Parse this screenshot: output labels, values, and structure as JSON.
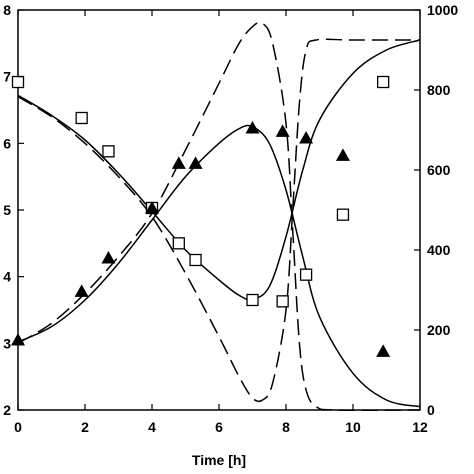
{
  "chart_data": {
    "type": "scatter",
    "title": "",
    "xlabel": "Time [h]",
    "ylabel": "",
    "y2label": "",
    "xlim": [
      0,
      12
    ],
    "ylim": [
      2,
      8
    ],
    "y2lim": [
      0,
      1000
    ],
    "x_ticks": [
      0,
      2,
      4,
      6,
      8,
      10,
      12
    ],
    "y_ticks": [
      2,
      3,
      4,
      5,
      6,
      7,
      8
    ],
    "y2_ticks": [
      0,
      200,
      400,
      600,
      800,
      1000
    ],
    "grid": false,
    "legend": "none",
    "series": [
      {
        "marker": "open-square",
        "axis": "left",
        "points": [
          [
            0,
            6.92
          ],
          [
            1.9,
            6.38
          ],
          [
            2.7,
            5.88
          ],
          [
            4.0,
            5.03
          ],
          [
            4.8,
            4.5
          ],
          [
            5.3,
            4.25
          ],
          [
            7.0,
            3.65
          ],
          [
            7.9,
            3.63
          ],
          [
            8.6,
            4.03
          ],
          [
            9.7,
            4.93
          ],
          [
            10.9,
            6.92
          ]
        ]
      },
      {
        "marker": "filled-triangle",
        "axis": "left",
        "points": [
          [
            0,
            3.05
          ],
          [
            1.9,
            3.78
          ],
          [
            2.7,
            4.28
          ],
          [
            4.0,
            5.03
          ],
          [
            4.8,
            5.7
          ],
          [
            5.3,
            5.7
          ],
          [
            7.0,
            6.23
          ],
          [
            7.9,
            6.18
          ],
          [
            8.6,
            6.08
          ],
          [
            9.7,
            5.82
          ],
          [
            10.9,
            2.88
          ]
        ]
      },
      {
        "style": "solid",
        "axis": "left",
        "points": [
          [
            0,
            6.72
          ],
          [
            1,
            6.42
          ],
          [
            2,
            6.05
          ],
          [
            3,
            5.55
          ],
          [
            4,
            4.98
          ],
          [
            5,
            4.4
          ],
          [
            6,
            3.95
          ],
          [
            6.6,
            3.72
          ],
          [
            7,
            3.66
          ],
          [
            7.5,
            3.85
          ],
          [
            8,
            4.6
          ],
          [
            8.5,
            5.6
          ],
          [
            9,
            6.35
          ],
          [
            10,
            7.05
          ],
          [
            11,
            7.4
          ],
          [
            12,
            7.55
          ]
        ]
      },
      {
        "style": "solid",
        "axis": "left",
        "points": [
          [
            0,
            3.02
          ],
          [
            1,
            3.25
          ],
          [
            2,
            3.65
          ],
          [
            3,
            4.2
          ],
          [
            4,
            4.85
          ],
          [
            5,
            5.5
          ],
          [
            6,
            6.0
          ],
          [
            6.6,
            6.22
          ],
          [
            7,
            6.25
          ],
          [
            7.5,
            6.0
          ],
          [
            8,
            5.3
          ],
          [
            8.5,
            4.3
          ],
          [
            9,
            3.4
          ],
          [
            10,
            2.55
          ],
          [
            11,
            2.15
          ],
          [
            12,
            2.05
          ]
        ]
      },
      {
        "style": "dashed",
        "axis": "left",
        "points": [
          [
            0,
            6.7
          ],
          [
            1,
            6.4
          ],
          [
            2,
            6.0
          ],
          [
            3,
            5.5
          ],
          [
            4,
            4.9
          ],
          [
            5,
            4.05
          ],
          [
            6,
            3.1
          ],
          [
            6.6,
            2.5
          ],
          [
            7,
            2.18
          ],
          [
            7.3,
            2.15
          ],
          [
            7.6,
            2.4
          ],
          [
            8,
            3.5
          ],
          [
            8.2,
            5.0
          ],
          [
            8.4,
            6.6
          ],
          [
            8.6,
            7.4
          ],
          [
            8.9,
            7.55
          ],
          [
            10,
            7.55
          ],
          [
            12,
            7.55
          ]
        ]
      },
      {
        "style": "dashed",
        "axis": "left",
        "points": [
          [
            0,
            3.0
          ],
          [
            1,
            3.3
          ],
          [
            2,
            3.75
          ],
          [
            3,
            4.3
          ],
          [
            4,
            4.95
          ],
          [
            5,
            5.9
          ],
          [
            6,
            6.9
          ],
          [
            6.6,
            7.5
          ],
          [
            7,
            7.75
          ],
          [
            7.3,
            7.8
          ],
          [
            7.6,
            7.5
          ],
          [
            8,
            6.3
          ],
          [
            8.2,
            4.7
          ],
          [
            8.4,
            3.0
          ],
          [
            8.6,
            2.3
          ],
          [
            8.9,
            2.05
          ],
          [
            9.5,
            2.0
          ],
          [
            12,
            2.0
          ]
        ]
      }
    ]
  }
}
